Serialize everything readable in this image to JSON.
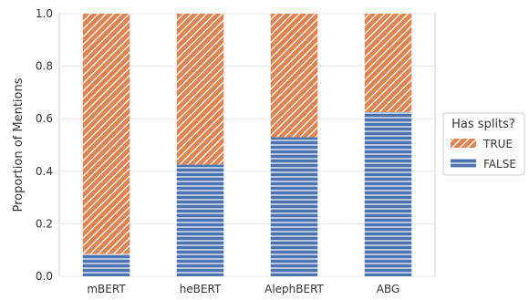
{
  "chart_data": {
    "type": "bar",
    "stacked": true,
    "categories": [
      "mBERT",
      "heBERT",
      "AlephBERT",
      "ABG"
    ],
    "series": [
      {
        "name": "FALSE",
        "values": [
          0.085,
          0.425,
          0.53,
          0.625
        ],
        "color": "#4c72b0",
        "hatch": "horizontal"
      },
      {
        "name": "TRUE",
        "values": [
          0.915,
          0.575,
          0.47,
          0.375
        ],
        "color": "#dd8452",
        "hatch": "diagonal"
      }
    ],
    "ylabel": "Proportion of Mentions",
    "xlabel": "",
    "ylim": [
      0,
      1.0
    ],
    "yticks": [
      "0.0",
      "0.2",
      "0.4",
      "0.6",
      "0.8",
      "1.0"
    ],
    "grid": true,
    "legend": {
      "title": "Has splits?",
      "placement": "center-right",
      "entries": [
        "TRUE",
        "FALSE"
      ]
    }
  }
}
